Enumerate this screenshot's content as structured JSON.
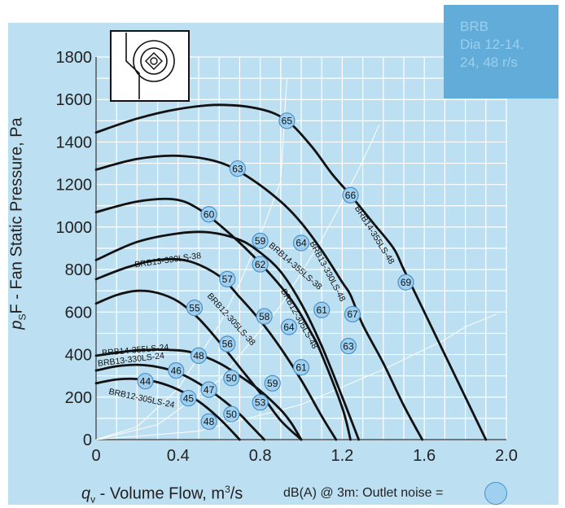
{
  "tag": {
    "line1": "BRB",
    "line2": "Dia 12-14.",
    "line3": "24, 48 r/s"
  },
  "colors": {
    "panel": "#bcdff1",
    "grid": "#ffffff",
    "curve": "#111111",
    "marker_fill": "#9fd0f0",
    "marker_stroke": "#4a90c8",
    "tag": "#62acd9"
  },
  "chart_data": {
    "type": "line",
    "title": "",
    "ylabel_symbol": "p",
    "ylabel_sub": "S",
    "ylabel_text": "F - Fan Static Pressure, Pa",
    "xlabel_symbol": "q",
    "xlabel_sub": "v",
    "xlabel_text": " - Volume Flow, m",
    "xlabel_sup": "3",
    "xlabel_suffix": "/s",
    "legend_note": "dB(A) @ 3m:  Outlet noise  =",
    "xlim": [
      0,
      2.0
    ],
    "ylim": [
      0,
      1800
    ],
    "grid": true,
    "x_ticks": [
      0,
      0.4,
      0.8,
      1.2,
      1.6,
      2.0
    ],
    "x_tick_labels": [
      "0",
      "0.4",
      "0.8",
      "1.2",
      "1.6",
      "2.0"
    ],
    "y_ticks": [
      0,
      200,
      400,
      600,
      800,
      1000,
      1200,
      1400,
      1600,
      1800
    ],
    "y_tick_labels": [
      "0",
      "200",
      "400",
      "600",
      "800",
      "1000",
      "1200",
      "1400",
      "1600",
      "1800"
    ],
    "series": [
      {
        "name": "BRB14-355LS-48",
        "x": [
          0,
          0.2,
          0.4,
          0.6,
          0.8,
          0.93,
          1.05,
          1.15,
          1.24,
          1.35,
          1.45,
          1.5,
          1.6,
          1.7,
          1.8,
          1.9
        ],
        "y": [
          1445,
          1510,
          1555,
          1575,
          1555,
          1500,
          1380,
          1250,
          1150,
          1020,
          900,
          800,
          600,
          400,
          200,
          0
        ],
        "markers": [
          {
            "label": "65",
            "x": 0.93,
            "y": 1500
          },
          {
            "label": "66",
            "x": 1.24,
            "y": 1150
          },
          {
            "label": "69",
            "x": 1.51,
            "y": 740
          }
        ]
      },
      {
        "name": "BRB13-330LS-48",
        "x": [
          0,
          0.2,
          0.4,
          0.6,
          0.75,
          0.9,
          1.0,
          1.1,
          1.2,
          1.24,
          1.3,
          1.4,
          1.5,
          1.59
        ],
        "y": [
          1270,
          1320,
          1335,
          1305,
          1230,
          1120,
          1020,
          890,
          740,
          680,
          540,
          360,
          160,
          0
        ],
        "markers": [
          {
            "label": "63",
            "x": 0.69,
            "y": 1275
          },
          {
            "label": "64",
            "x": 1.0,
            "y": 925
          },
          {
            "label": "67",
            "x": 1.25,
            "y": 590
          },
          {
            "label": "63",
            "x": 1.23,
            "y": 440
          }
        ]
      },
      {
        "name": "BRB12-305LS-48",
        "x": [
          0,
          0.2,
          0.38,
          0.5,
          0.65,
          0.8,
          0.95,
          1.05,
          1.1,
          1.2,
          1.24
        ],
        "y": [
          1070,
          1120,
          1130,
          1085,
          970,
          830,
          660,
          500,
          400,
          150,
          0
        ],
        "markers": [
          {
            "label": "60",
            "x": 0.55,
            "y": 1060
          },
          {
            "label": "61",
            "x": 1.1,
            "y": 610
          },
          {
            "label": "61",
            "x": 1.0,
            "y": 340
          }
        ]
      },
      {
        "name": "BRB14-355LS-38",
        "x": [
          0,
          0.2,
          0.4,
          0.55,
          0.7,
          0.8,
          0.9,
          1.0,
          1.1,
          1.2,
          1.28
        ],
        "y": [
          845,
          930,
          970,
          975,
          940,
          880,
          790,
          640,
          440,
          200,
          0
        ],
        "markers": [
          {
            "label": "59",
            "x": 0.8,
            "y": 935
          },
          {
            "label": "58",
            "x": 0.82,
            "y": 580
          }
        ]
      },
      {
        "name": "BRB13-330LS-38",
        "x": [
          0,
          0.15,
          0.3,
          0.45,
          0.6,
          0.7,
          0.8,
          0.9,
          1.0,
          1.1,
          1.17
        ],
        "y": [
          755,
          810,
          845,
          840,
          770,
          670,
          560,
          430,
          280,
          110,
          0
        ],
        "markers": [
          {
            "label": "62",
            "x": 0.8,
            "y": 825
          },
          {
            "label": "57",
            "x": 0.64,
            "y": 755
          },
          {
            "label": "64",
            "x": 0.94,
            "y": 530
          }
        ]
      },
      {
        "name": "BRB12-305LS-38",
        "x": [
          0,
          0.1,
          0.2,
          0.3,
          0.4,
          0.5,
          0.6,
          0.7,
          0.8,
          0.9,
          1.0
        ],
        "y": [
          640,
          680,
          700,
          690,
          650,
          570,
          460,
          340,
          220,
          90,
          0
        ],
        "markers": [
          {
            "label": "55",
            "x": 0.48,
            "y": 620
          },
          {
            "label": "56",
            "x": 0.64,
            "y": 450
          }
        ]
      },
      {
        "name": "BRB14-355LS-24",
        "x": [
          0,
          0.2,
          0.4,
          0.5,
          0.6,
          0.7,
          0.8,
          0.9,
          0.95,
          1.0
        ],
        "y": [
          395,
          420,
          420,
          400,
          360,
          300,
          230,
          140,
          80,
          0
        ],
        "markers": [
          {
            "label": "48",
            "x": 0.5,
            "y": 395
          },
          {
            "label": "50",
            "x": 0.66,
            "y": 290
          },
          {
            "label": "59",
            "x": 0.86,
            "y": 265
          }
        ]
      },
      {
        "name": "BRB13-330LS-24",
        "x": [
          0,
          0.1,
          0.2,
          0.3,
          0.4,
          0.5,
          0.6,
          0.7,
          0.75,
          0.82
        ],
        "y": [
          325,
          345,
          352,
          342,
          315,
          265,
          200,
          120,
          70,
          0
        ],
        "markers": [
          {
            "label": "46",
            "x": 0.39,
            "y": 325
          },
          {
            "label": "47",
            "x": 0.55,
            "y": 235
          },
          {
            "label": "53",
            "x": 0.8,
            "y": 175
          }
        ]
      },
      {
        "name": "BRB12-305LS-24",
        "x": [
          0,
          0.1,
          0.2,
          0.3,
          0.4,
          0.5,
          0.6,
          0.7
        ],
        "y": [
          265,
          283,
          285,
          270,
          235,
          180,
          100,
          0
        ],
        "markers": [
          {
            "label": "44",
            "x": 0.24,
            "y": 275
          },
          {
            "label": "45",
            "x": 0.45,
            "y": 195
          },
          {
            "label": "50",
            "x": 0.66,
            "y": 120
          },
          {
            "label": "48",
            "x": 0.55,
            "y": 85
          }
        ]
      }
    ],
    "curve_labels": [
      {
        "text": "BRB14-355LS-48",
        "x": 1.26,
        "y": 1090,
        "angle": 58
      },
      {
        "text": "BRB13-330LS-48",
        "x": 1.04,
        "y": 925,
        "angle": 62
      },
      {
        "text": "BRB14-355LS-38",
        "x": 0.84,
        "y": 910,
        "angle": 41
      },
      {
        "text": "BRB13-330LS-38",
        "x": 0.19,
        "y": 810,
        "angle": -8
      },
      {
        "text": "BRB12-305LS-48",
        "x": 0.9,
        "y": 700,
        "angle": 61
      },
      {
        "text": "BRB12-305LS-38",
        "x": 0.54,
        "y": 675,
        "angle": 48
      },
      {
        "text": "BRB14-355LS-24",
        "x": 0.03,
        "y": 395,
        "angle": -5
      },
      {
        "text": "BRB13-330LS-24",
        "x": 0.01,
        "y": 345,
        "angle": -7
      },
      {
        "text": "BRB12-305LS-24",
        "x": 0.06,
        "y": 215,
        "angle": 12
      }
    ],
    "system_curves": [
      {
        "x": [
          0.0,
          0.2,
          0.4,
          0.6,
          0.7,
          0.8,
          0.9,
          0.93
        ],
        "y": [
          0,
          60,
          240,
          540,
          735,
          960,
          1215,
          1700
        ]
      },
      {
        "x": [
          0.0,
          0.3,
          0.6,
          0.9,
          1.1,
          1.2,
          1.3,
          1.38
        ],
        "y": [
          0,
          70,
          280,
          630,
          940,
          1120,
          1310,
          1480
        ]
      },
      {
        "x": [
          0.0,
          0.5,
          1.0,
          1.4,
          1.7,
          1.8,
          1.95
        ],
        "y": [
          0,
          40,
          165,
          330,
          470,
          530,
          590
        ]
      }
    ]
  }
}
